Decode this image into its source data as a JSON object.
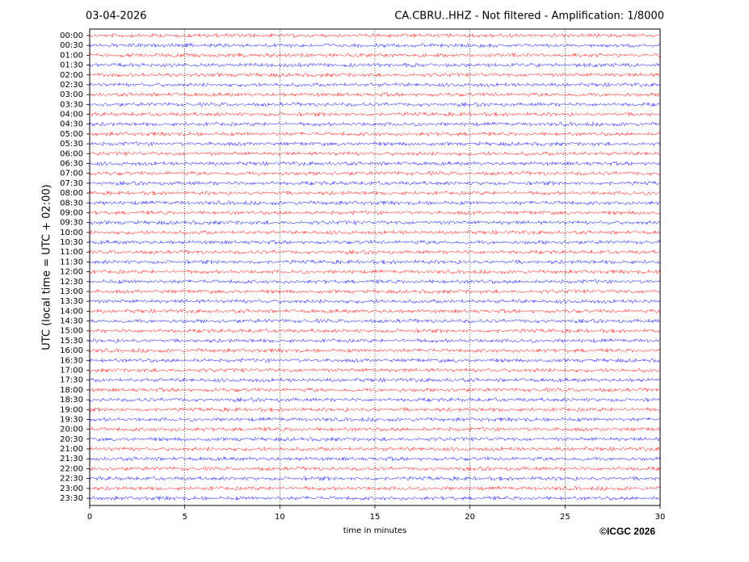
{
  "chart_data": {
    "type": "helicorder",
    "date": "03-04-2026",
    "title": "CA.CBRU..HHZ - Not filtered - Amplification: 1/8000",
    "xlabel": "time in minutes",
    "ylabel": "UTC (local time = UTC + 02:00)",
    "copyright": "©ICGC 2026",
    "categories": [
      "00:00",
      "00:30",
      "01:00",
      "01:30",
      "02:00",
      "02:30",
      "03:00",
      "03:30",
      "04:00",
      "04:30",
      "05:00",
      "05:30",
      "06:00",
      "06:30",
      "07:00",
      "07:30",
      "08:00",
      "08:30",
      "09:00",
      "09:30",
      "10:00",
      "10:30",
      "11:00",
      "11:30",
      "12:00",
      "12:30",
      "13:00",
      "13:30",
      "14:00",
      "14:30",
      "15:00",
      "15:30",
      "16:00",
      "16:30",
      "17:00",
      "17:30",
      "18:00",
      "18:30",
      "19:00",
      "19:30",
      "20:00",
      "20:30",
      "21:00",
      "21:30",
      "22:00",
      "22:30",
      "23:00",
      "23:30"
    ],
    "colors": [
      "#ff0000",
      "#0000ff"
    ],
    "xlim": [
      0,
      30
    ],
    "xticks": [
      0,
      5,
      10,
      15,
      20,
      25,
      30
    ],
    "grid": true
  }
}
